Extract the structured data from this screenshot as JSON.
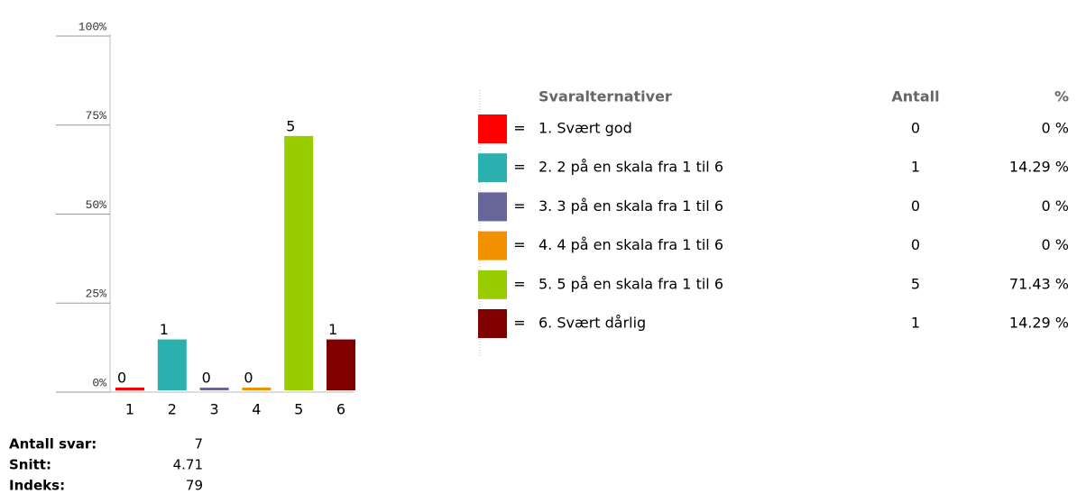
{
  "chart_data": {
    "type": "bar",
    "categories": [
      "1",
      "2",
      "3",
      "4",
      "5",
      "6"
    ],
    "values": [
      0,
      14.29,
      0,
      0,
      71.43,
      14.29
    ],
    "colors": [
      "#ff0000",
      "#2bb0b0",
      "#666699",
      "#f39200",
      "#99cc00",
      "#800000"
    ],
    "ylim": [
      0,
      100
    ],
    "yticks": [
      {
        "value": 0,
        "label": "0%"
      },
      {
        "value": 25,
        "label": "25%"
      },
      {
        "value": 50,
        "label": "50%"
      },
      {
        "value": 75,
        "label": "75%"
      },
      {
        "value": 100,
        "label": "100%"
      }
    ]
  },
  "table": {
    "headers": [
      "Svaralternativer",
      "Antall",
      "%"
    ],
    "rows": [
      {
        "label": "1. Svært god",
        "count": "0",
        "percent": "0 %"
      },
      {
        "label": "2. 2 på en skala fra 1 til 6",
        "count": "1",
        "percent": "14.29 %"
      },
      {
        "label": "3. 3 på en skala fra 1 til 6",
        "count": "0",
        "percent": "0 %"
      },
      {
        "label": "4. 4 på en skala fra 1 til 6",
        "count": "0",
        "percent": "0 %"
      },
      {
        "label": "5. 5 på en skala fra 1 til 6",
        "count": "5",
        "percent": "71.43 %"
      },
      {
        "label": "6. Svært dårlig",
        "count": "1",
        "percent": "14.29 %"
      }
    ],
    "separator": "="
  },
  "stats": [
    {
      "label": "Antall svar:",
      "value": "7"
    },
    {
      "label": "Snitt:",
      "value": "4.71"
    },
    {
      "label": "Indeks:",
      "value": "79"
    }
  ]
}
